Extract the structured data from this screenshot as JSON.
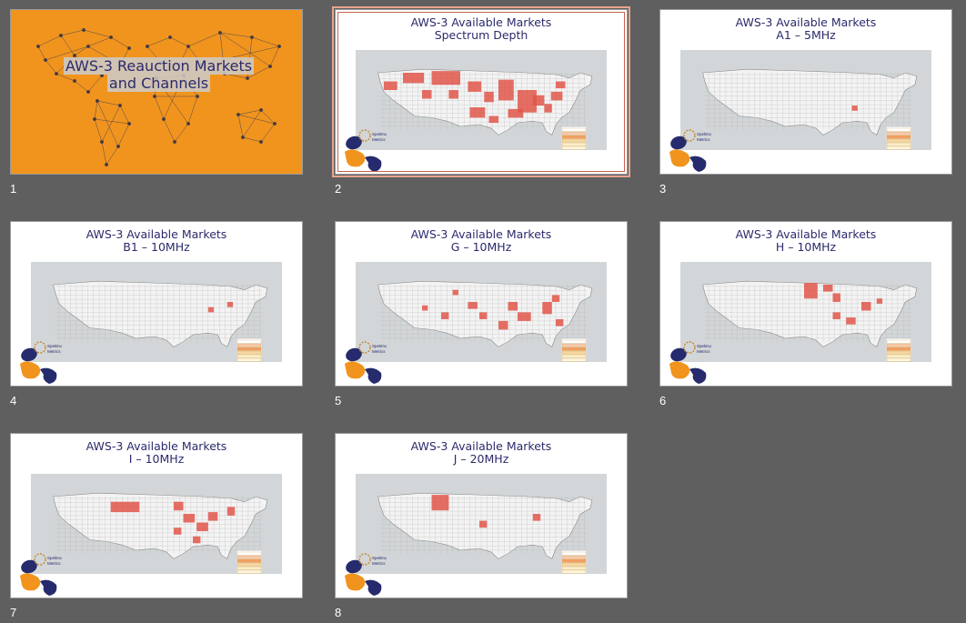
{
  "slides": [
    {
      "number": "1",
      "title": "AWS-3 Reauction Markets",
      "subtitle": "and Channels"
    },
    {
      "number": "2",
      "title": "AWS-3 Available Markets",
      "subtitle": "Spectrum Depth"
    },
    {
      "number": "3",
      "title": "AWS-3 Available Markets",
      "subtitle": "A1 – 5MHz"
    },
    {
      "number": "4",
      "title": "AWS-3 Available Markets",
      "subtitle": "B1 – 10MHz"
    },
    {
      "number": "5",
      "title": "AWS-3 Available Markets",
      "subtitle": "G – 10MHz"
    },
    {
      "number": "6",
      "title": "AWS-3 Available Markets",
      "subtitle": "H – 10MHz"
    },
    {
      "number": "7",
      "title": "AWS-3 Available Markets",
      "subtitle": "I – 10MHz"
    },
    {
      "number": "8",
      "title": "AWS-3 Available Markets",
      "subtitle": "J – 20MHz"
    }
  ],
  "selected_slide": "2",
  "logo": {
    "line1": "Spektrum",
    "line2": "Metrics"
  },
  "colors": {
    "background": "#5f5f5f",
    "cover": "#f0941e",
    "title": "#2b2a6c",
    "market": "#e0564a",
    "map_land": "#f3f3f3",
    "map_water": "#d3d6d8",
    "logo_navy": "#252b6c",
    "logo_orange": "#f0941e",
    "selection": "#e7a58f"
  },
  "icons": [
    "world-network-icon",
    "us-map-icon",
    "spektrum-logo-icon",
    "legend-icon"
  ]
}
